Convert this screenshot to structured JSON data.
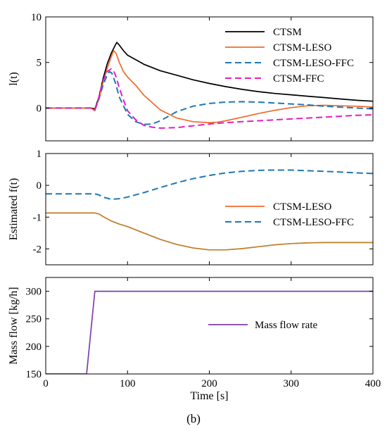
{
  "caption": "(b)",
  "colors": {
    "CTSM": "#000000",
    "CTSM-LESO": "#f26a2b",
    "CTSM-LESO-FFC": "#1f77b4",
    "CTSM-FFC": "#e01fc4",
    "Mass flow rate": "#7e3fa6",
    "overlap": "#a98a2f"
  },
  "chart_data": [
    {
      "id": "panel-lt",
      "type": "line",
      "title": "",
      "xlabel": "",
      "ylabel": "l(t)",
      "xlim": [
        0,
        400
      ],
      "ylim": [
        -3.6,
        10
      ],
      "xticks": [
        0,
        100,
        200,
        300,
        400
      ],
      "xtick_labels_shown": false,
      "yticks": [
        0,
        5,
        10
      ],
      "legend_position": "top-right",
      "series": [
        {
          "name": "CTSM",
          "style": "solid",
          "x": [
            0,
            55,
            60,
            65,
            70,
            75,
            80,
            85,
            87,
            90,
            95,
            100,
            110,
            120,
            140,
            160,
            180,
            200,
            220,
            240,
            260,
            280,
            300,
            320,
            340,
            360,
            380,
            400
          ],
          "y": [
            0,
            0,
            -0.1,
            1.2,
            3.2,
            4.8,
            6.0,
            6.9,
            7.2,
            6.9,
            6.3,
            5.8,
            5.3,
            4.8,
            4.1,
            3.6,
            3.1,
            2.7,
            2.35,
            2.05,
            1.8,
            1.6,
            1.45,
            1.3,
            1.15,
            1.0,
            0.85,
            0.75
          ]
        },
        {
          "name": "CTSM-LESO",
          "style": "solid",
          "x": [
            0,
            55,
            60,
            65,
            70,
            75,
            80,
            83,
            86,
            90,
            95,
            100,
            110,
            120,
            140,
            160,
            180,
            200,
            210,
            220,
            240,
            260,
            280,
            300,
            320,
            340,
            360,
            380,
            400
          ],
          "y": [
            0,
            0,
            -0.3,
            1.0,
            2.8,
            4.3,
            5.6,
            6.3,
            6.0,
            5.0,
            4.0,
            3.4,
            2.5,
            1.4,
            -0.2,
            -1.1,
            -1.5,
            -1.6,
            -1.55,
            -1.4,
            -1.0,
            -0.6,
            -0.25,
            0.05,
            0.25,
            0.3,
            0.25,
            0.2,
            0.1
          ]
        },
        {
          "name": "CTSM-LESO-FFC",
          "style": "dashed",
          "x": [
            0,
            55,
            60,
            65,
            70,
            75,
            78,
            81,
            85,
            90,
            100,
            110,
            120,
            130,
            140,
            150,
            160,
            180,
            200,
            220,
            240,
            260,
            280,
            300,
            320,
            340,
            360,
            380,
            400
          ],
          "y": [
            0,
            0,
            -0.2,
            1.0,
            2.5,
            3.6,
            4.0,
            3.8,
            2.8,
            1.2,
            -0.7,
            -1.5,
            -1.8,
            -1.75,
            -1.4,
            -0.9,
            -0.4,
            0.2,
            0.5,
            0.65,
            0.7,
            0.65,
            0.55,
            0.45,
            0.35,
            0.2,
            0.1,
            0.0,
            -0.1
          ]
        },
        {
          "name": "CTSM-FFC",
          "style": "dashed",
          "x": [
            0,
            55,
            60,
            65,
            70,
            75,
            80,
            83,
            86,
            90,
            95,
            100,
            110,
            120,
            130,
            140,
            160,
            180,
            200,
            220,
            240,
            260,
            280,
            300,
            320,
            340,
            360,
            380,
            400
          ],
          "y": [
            0,
            0,
            -0.2,
            1.2,
            3.0,
            4.0,
            4.3,
            4.1,
            3.4,
            2.2,
            0.9,
            -0.3,
            -1.3,
            -1.9,
            -2.1,
            -2.2,
            -2.15,
            -1.95,
            -1.75,
            -1.6,
            -1.5,
            -1.4,
            -1.3,
            -1.2,
            -1.1,
            -1.0,
            -0.9,
            -0.8,
            -0.75
          ]
        }
      ]
    },
    {
      "id": "panel-estimated",
      "type": "line",
      "title": "",
      "xlabel": "",
      "ylabel": "Estimated f(t)",
      "xlim": [
        0,
        400
      ],
      "ylim": [
        -2.5,
        1
      ],
      "xticks": [
        0,
        100,
        200,
        300,
        400
      ],
      "xtick_labels_shown": false,
      "yticks": [
        -2,
        -1,
        0,
        1
      ],
      "legend_position": "bottom-right",
      "series": [
        {
          "name": "CTSM-LESO",
          "style": "solid",
          "x": [
            0,
            55,
            60,
            65,
            70,
            80,
            90,
            100,
            120,
            140,
            160,
            180,
            200,
            220,
            240,
            260,
            280,
            300,
            320,
            340,
            360,
            380,
            400
          ],
          "y": [
            -0.87,
            -0.87,
            -0.87,
            -0.9,
            -0.98,
            -1.12,
            -1.22,
            -1.3,
            -1.5,
            -1.7,
            -1.86,
            -1.97,
            -2.03,
            -2.03,
            -1.99,
            -1.93,
            -1.87,
            -1.83,
            -1.81,
            -1.8,
            -1.8,
            -1.8,
            -1.8
          ]
        },
        {
          "name": "CTSM-LESO-FFC",
          "style": "dashed",
          "x": [
            0,
            55,
            60,
            65,
            70,
            80,
            90,
            100,
            120,
            140,
            160,
            180,
            200,
            220,
            240,
            260,
            280,
            300,
            320,
            340,
            360,
            380,
            400
          ],
          "y": [
            -0.27,
            -0.27,
            -0.27,
            -0.3,
            -0.37,
            -0.44,
            -0.42,
            -0.37,
            -0.23,
            -0.07,
            0.08,
            0.21,
            0.31,
            0.39,
            0.44,
            0.47,
            0.48,
            0.48,
            0.46,
            0.44,
            0.42,
            0.39,
            0.37
          ]
        }
      ]
    },
    {
      "id": "panel-massflow",
      "type": "line",
      "title": "",
      "xlabel": "Time [s]",
      "ylabel": "Mass flow [kg/h]",
      "xlim": [
        0,
        400
      ],
      "ylim": [
        150,
        325
      ],
      "xticks": [
        0,
        100,
        200,
        300,
        400
      ],
      "xtick_labels_shown": true,
      "yticks": [
        150,
        200,
        250,
        300
      ],
      "legend_position": "center-right",
      "series": [
        {
          "name": "Mass flow rate",
          "style": "solid",
          "x": [
            0,
            50,
            60,
            400
          ],
          "y": [
            150,
            150,
            300,
            300
          ]
        }
      ]
    }
  ]
}
